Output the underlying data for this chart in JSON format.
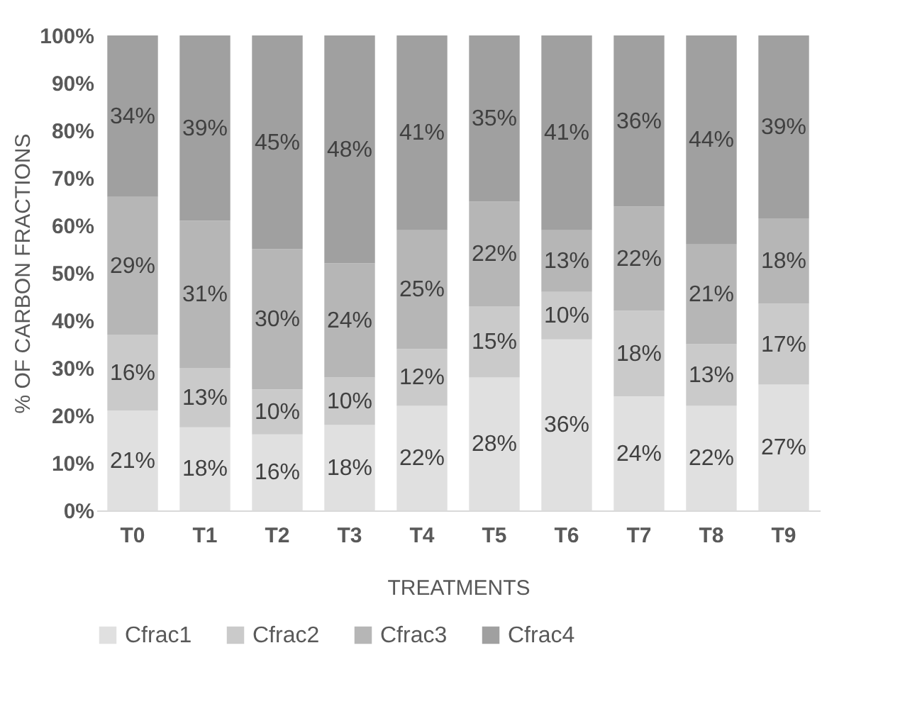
{
  "chart_data": {
    "type": "bar",
    "stacked": true,
    "xlabel": "TREATMENTS",
    "ylabel": "% OF CARBON FRACTIONS",
    "categories": [
      "T0",
      "T1",
      "T2",
      "T3",
      "T4",
      "T5",
      "T6",
      "T7",
      "T8",
      "T9"
    ],
    "ylim": [
      0,
      100
    ],
    "yticks": [
      {
        "value": 0,
        "label": "0%"
      },
      {
        "value": 10,
        "label": "10%"
      },
      {
        "value": 20,
        "label": "20%"
      },
      {
        "value": 30,
        "label": "30%"
      },
      {
        "value": 40,
        "label": "40%"
      },
      {
        "value": 50,
        "label": "50%"
      },
      {
        "value": 60,
        "label": "60%"
      },
      {
        "value": 70,
        "label": "70%"
      },
      {
        "value": 80,
        "label": "80%"
      },
      {
        "value": 90,
        "label": "90%"
      },
      {
        "value": 100,
        "label": "100%"
      }
    ],
    "legend": "bottom",
    "grid": false,
    "series": [
      {
        "name": "Cfrac1",
        "color": "#e0e0e0",
        "values": [
          21,
          17.5,
          16,
          18,
          22,
          28,
          36,
          24,
          22,
          26.5
        ],
        "value_labels": [
          "21%",
          "18%",
          "16%",
          "18%",
          "22%",
          "28%",
          "36%",
          "24%",
          "22%",
          "27%"
        ]
      },
      {
        "name": "Cfrac2",
        "color": "#cacaca",
        "values": [
          16,
          12.5,
          9.5,
          10,
          12,
          15,
          10,
          18,
          13,
          17
        ],
        "value_labels": [
          "16%",
          "13%",
          "10%",
          "10%",
          "12%",
          "15%",
          "10%",
          "18%",
          "13%",
          "17%"
        ]
      },
      {
        "name": "Cfrac3",
        "color": "#b6b6b6",
        "values": [
          29,
          31,
          29.5,
          24,
          25,
          22,
          13,
          22,
          21,
          18
        ],
        "value_labels": [
          "29%",
          "31%",
          "30%",
          "24%",
          "25%",
          "22%",
          "13%",
          "22%",
          "21%",
          "18%"
        ]
      },
      {
        "name": "Cfrac4",
        "color": "#a0a0a0",
        "values": [
          34,
          39,
          45,
          48,
          41,
          35,
          41,
          36,
          44,
          38.5
        ],
        "value_labels": [
          "34%",
          "39%",
          "45%",
          "48%",
          "41%",
          "35%",
          "41%",
          "36%",
          "44%",
          "39%"
        ]
      }
    ]
  }
}
